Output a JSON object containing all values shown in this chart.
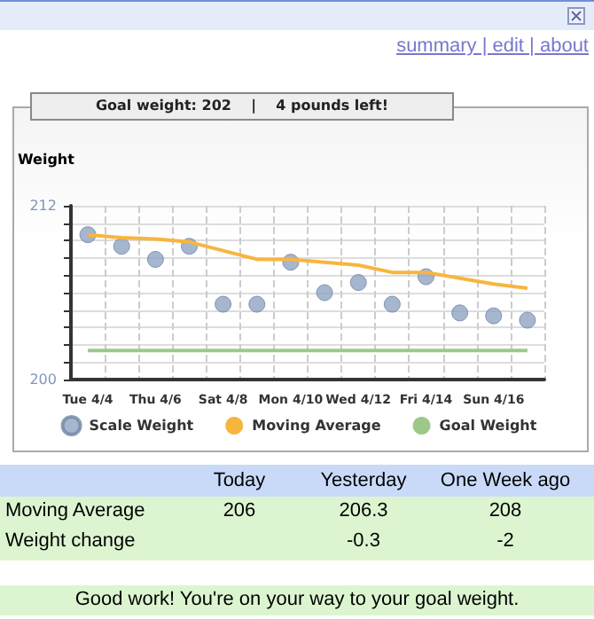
{
  "chart_data": {
    "type": "scatter",
    "subtitle": "Goal weight: 202    |    4 pounds left!",
    "ylabel": "Weight",
    "categories": [
      "Tue 4/4",
      null,
      "Thu 4/6",
      null,
      "Sat 4/8",
      null,
      "Mon 4/10",
      null,
      "Wed 4/12",
      null,
      "Fri 4/14",
      null,
      "Sun 4/16",
      null
    ],
    "series": [
      {
        "name": "Scale Weight",
        "marker": "circle",
        "color": "#8ea4c2",
        "values": [
          210.0,
          209.2,
          208.3,
          209.2,
          205.2,
          205.2,
          208.1,
          206.0,
          206.7,
          205.2,
          207.1,
          204.6,
          204.4,
          204.1
        ]
      },
      {
        "name": "Moving Average",
        "type": "line",
        "marker": "none",
        "color": "#f8b53e",
        "values": [
          210.0,
          209.8,
          209.7,
          209.5,
          208.9,
          208.3,
          208.3,
          208.1,
          207.9,
          207.4,
          207.4,
          207.0,
          206.6,
          206.3
        ]
      },
      {
        "name": "Goal Weight",
        "type": "line",
        "marker": "none",
        "color": "#9cc98a",
        "values": [
          202,
          202,
          202,
          202,
          202,
          202,
          202,
          202,
          202,
          202,
          202,
          202,
          202,
          202
        ]
      }
    ],
    "ylim": [
      200,
      212
    ],
    "yticks": [
      200,
      {
        "value": 201.2,
        "label": null
      },
      {
        "value": 202.4,
        "label": null
      },
      {
        "value": 203.6,
        "label": null
      },
      {
        "value": 204.8,
        "label": null
      },
      {
        "value": 206,
        "label": null
      },
      {
        "value": 207.2,
        "label": null
      },
      {
        "value": 208.4,
        "label": null
      },
      {
        "value": 209.6,
        "label": null
      },
      {
        "value": 210.8,
        "label": null
      },
      212
    ],
    "grid": true,
    "legend": "bottom",
    "annotations": [
      "summary | edit | about",
      "Today",
      "Yesterday",
      "One Week ago",
      "Moving Average",
      "206",
      "206.3",
      "208",
      "Weight change",
      "-0.3",
      "-2",
      "Good work! You're on your way to your goal weight."
    ]
  }
}
